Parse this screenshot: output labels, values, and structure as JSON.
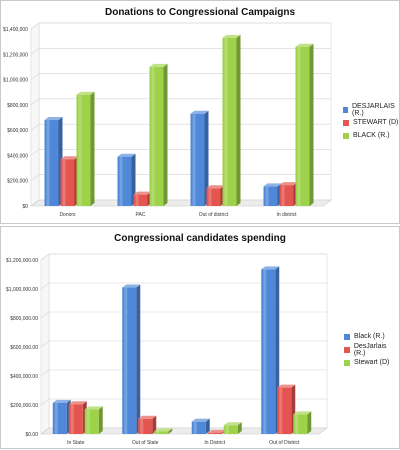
{
  "chart_data": [
    {
      "type": "bar",
      "title": "Donations to Congressional Campaigns",
      "categories": [
        "Donors",
        "PAC",
        "Out of district",
        "In district"
      ],
      "y_ticks": [
        "$0",
        "$200,000",
        "$400,000",
        "$600,000",
        "$800,000",
        "$1,000,000",
        "$1,200,000",
        "$1,400,000"
      ],
      "ylim": [
        0,
        1400000
      ],
      "legend_position": "right",
      "grid": true,
      "series": [
        {
          "name": "DESJARLAIS (R.)",
          "color": "#4f88d8",
          "values": [
            680000,
            390000,
            730000,
            155000
          ]
        },
        {
          "name": "STEWART (D)",
          "color": "#e4554f",
          "values": [
            370000,
            90000,
            140000,
            165000
          ]
        },
        {
          "name": "BLACK (R.)",
          "color": "#9ed24a",
          "values": [
            880000,
            1100000,
            1330000,
            1260000
          ]
        }
      ]
    },
    {
      "type": "bar",
      "title": "Congressional candidates spending",
      "categories": [
        "In State",
        "Out of State",
        "In District",
        "Out of District"
      ],
      "y_ticks": [
        "$0.00",
        "$200,000.00",
        "$400,000.00",
        "$600,000.00",
        "$800,000.00",
        "$1,000,000.00",
        "$1,200,000.00"
      ],
      "ylim": [
        0,
        1200000
      ],
      "legend_position": "right",
      "grid": true,
      "series": [
        {
          "name": "Black (R.)",
          "color": "#4f88d8",
          "values": [
            215000,
            1010000,
            85000,
            1135000
          ]
        },
        {
          "name": "DesJarlais (R.)",
          "color": "#e4554f",
          "values": [
            205000,
            105000,
            8000,
            320000
          ]
        },
        {
          "name": "Stewart (D)",
          "color": "#9ed24a",
          "values": [
            170000,
            18000,
            60000,
            135000
          ]
        }
      ]
    }
  ]
}
